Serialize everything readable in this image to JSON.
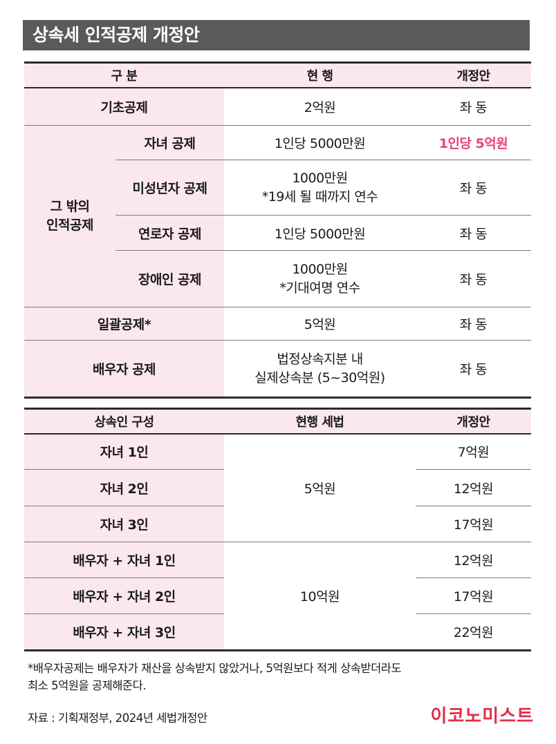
{
  "title": "상속세 인적공제 개정안",
  "table1": {
    "headers": [
      "구 분",
      "현 행",
      "개정안"
    ],
    "basic": {
      "label": "기초공제",
      "current": "2억원",
      "proposed": "좌 동"
    },
    "other_group": "그 밖의\n인적공제",
    "other_rows": [
      {
        "label": "자녀 공제",
        "current": "1인당 5000만원",
        "proposed": "1인당 5억원"
      },
      {
        "label": "미성년자 공제",
        "current": "1000만원\n*19세 될 때까지 연수",
        "proposed": "좌 동"
      },
      {
        "label": "연로자 공제",
        "current": "1인당 5000만원",
        "proposed": "좌 동"
      },
      {
        "label": "장애인 공제",
        "current": "1000만원\n*기대여명 연수",
        "proposed": "좌 동"
      }
    ],
    "lump": {
      "label": "일괄공제*",
      "current": "5억원",
      "proposed": "좌 동"
    },
    "spouse": {
      "label": "배우자 공제",
      "current": "법정상속지분 내\n실제상속분 (5~30억원)",
      "proposed": "좌 동"
    }
  },
  "table2": {
    "headers": [
      "상속인 구성",
      "현행 세법",
      "개정안"
    ],
    "group1_current": "5억원",
    "group2_current": "10억원",
    "rows": [
      {
        "label": "자녀 1인",
        "proposed": "7억원"
      },
      {
        "label": "자녀 2인",
        "proposed": "12억원"
      },
      {
        "label": "자녀 3인",
        "proposed": "17억원"
      },
      {
        "label": "배우자 + 자녀 1인",
        "proposed": "12억원"
      },
      {
        "label": "배우자 + 자녀 2인",
        "proposed": "17억원"
      },
      {
        "label": "배우자 + 자녀 3인",
        "proposed": "22억원"
      }
    ]
  },
  "footnote": "*배우자공제는 배우자가 재산을 상속받지 않았거나, 5억원보다 적게 상속받더라도\n최소 5억원을 공제해준다.",
  "source": "자료 : 기획재정부, 2024년 세법개정안",
  "brand": "이코노미스트",
  "colors": {
    "header_bg": "#5a5a5a",
    "pink_bg": "#fbe8ec",
    "accent": "#e4437a",
    "brand": "#e02d4a"
  }
}
